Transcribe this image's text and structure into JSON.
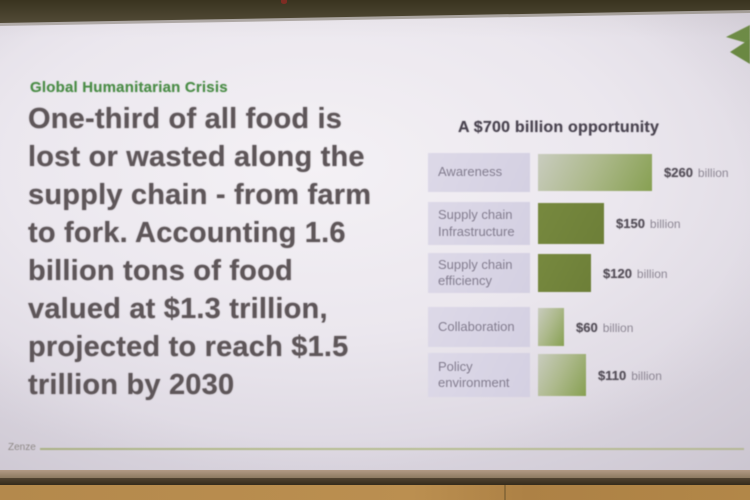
{
  "slide": {
    "kicker": "Global Humanitarian Crisis",
    "headline_lines": [
      "One-third of all food is",
      "lost or wasted along the",
      "supply chain - from farm",
      "to fork. Accounting 1.6",
      "billion tons of food",
      "valued at $1.3 trillion,",
      "projected to reach $1.5",
      "trillion by 2030"
    ],
    "brand": "Zenze"
  },
  "chart_data": {
    "type": "bar",
    "orientation": "horizontal",
    "title": "A $700 billion opportunity",
    "categories": [
      "Awareness",
      "Supply chain Infrastructure",
      "Supply chain efficiency",
      "Collaboration",
      "Policy environment"
    ],
    "values": [
      260,
      150,
      120,
      60,
      110
    ],
    "value_labels": [
      "$260",
      "$150",
      "$120",
      "$60",
      "$110"
    ],
    "unit": "billion",
    "xlim": [
      0,
      280
    ],
    "grid": false,
    "legend": false,
    "bar_styles": [
      "gradient",
      "solid",
      "solid",
      "gradient",
      "gradient"
    ]
  },
  "colors": {
    "accent_green": "#4a8c46",
    "bar_solid": "#71823c",
    "bar_gradient_light": "#c9ccbf",
    "bar_gradient_dark": "#87a052",
    "category_box": "#d8d4e5",
    "headline_text": "#5e5659",
    "slide_background": "#ebe7ee"
  }
}
